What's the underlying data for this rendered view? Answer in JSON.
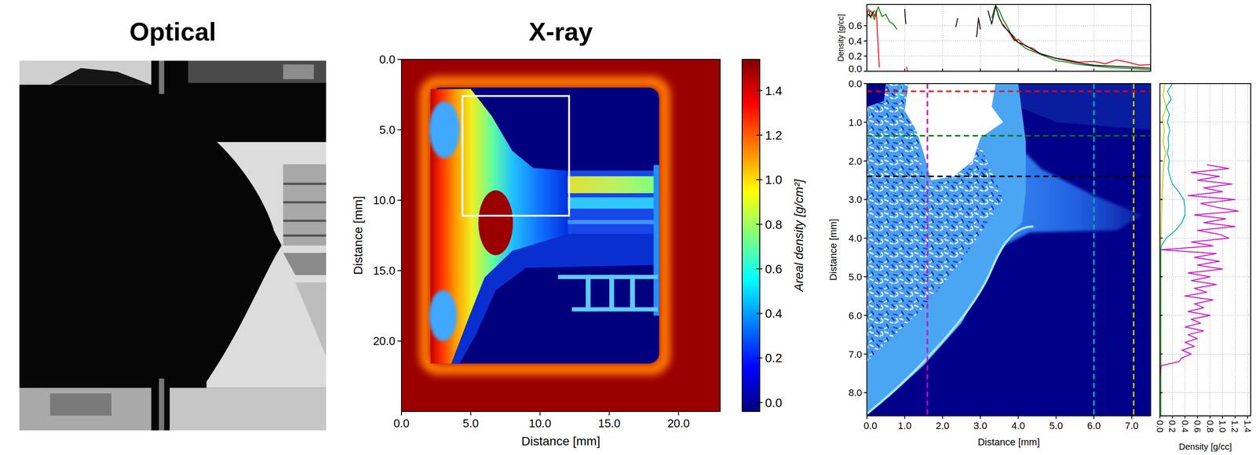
{
  "chart_data": [
    {
      "type": "image",
      "title": "Optical"
    },
    {
      "type": "heatmap",
      "title": "X-ray",
      "x_label": "Distance [mm]",
      "y_label": "Distance [mm]",
      "xlim": [
        0,
        23
      ],
      "ylim": [
        0,
        25
      ],
      "xticks": [
        {
          "value": 0,
          "label": "0.0"
        },
        {
          "value": 5,
          "label": "5.0"
        },
        {
          "value": 10,
          "label": "10.0"
        },
        {
          "value": 15,
          "label": "15.0"
        },
        {
          "value": 20,
          "label": "20.0"
        }
      ],
      "yticks": [
        {
          "value": 0,
          "label": "0.0"
        },
        {
          "value": 5,
          "label": "5.0"
        },
        {
          "value": 10,
          "label": "10.0"
        },
        {
          "value": 15,
          "label": "15.0"
        },
        {
          "value": 20,
          "label": "20.0"
        }
      ],
      "colorbar": {
        "label": "Areal density [g/cm²]",
        "range": [
          -0.04,
          1.54
        ],
        "ticks": [
          {
            "value": 0,
            "label": "0.0"
          },
          0.2,
          0.4,
          0.6,
          0.8,
          {
            "value": 1,
            "label": "1.0"
          },
          1.2,
          1.4
        ]
      },
      "zoom_box": {
        "x": [
          4.4,
          12.1
        ],
        "y": [
          2.6,
          11.1
        ]
      }
    },
    {
      "type": "heatmap",
      "x_label": "Distance [mm]",
      "y_label": "Distance [mm]",
      "xlim": [
        0,
        7.5
      ],
      "ylim": [
        0,
        8.6
      ],
      "xticks": [
        {
          "value": 0,
          "label": "0.0"
        },
        {
          "value": 1,
          "label": "1.0"
        },
        {
          "value": 2,
          "label": "2.0"
        },
        {
          "value": 3,
          "label": "3.0"
        },
        {
          "value": 4,
          "label": "4.0"
        },
        {
          "value": 5,
          "label": "5.0"
        },
        {
          "value": 6,
          "label": "6.0"
        },
        {
          "value": 7,
          "label": "7.0"
        }
      ],
      "yticks": [
        {
          "value": 0,
          "label": "0.0"
        },
        {
          "value": 1,
          "label": "1.0"
        },
        {
          "value": 2,
          "label": "2.0"
        },
        {
          "value": 3,
          "label": "3.0"
        },
        {
          "value": 4,
          "label": "4.0"
        },
        {
          "value": 5,
          "label": "5.0"
        },
        {
          "value": 6,
          "label": "6.0"
        },
        {
          "value": 7,
          "label": "7.0"
        },
        {
          "value": 8,
          "label": "8.0"
        }
      ],
      "lineouts": [
        {
          "direction": "horizontal",
          "position": 0.2,
          "color": "#ff0000"
        },
        {
          "direction": "horizontal",
          "position": 1.35,
          "color": "#008000"
        },
        {
          "direction": "horizontal",
          "position": 2.4,
          "color": "#000000"
        },
        {
          "direction": "vertical",
          "position": 1.6,
          "color": "#cc00cc"
        },
        {
          "direction": "vertical",
          "position": 6.0,
          "color": "#00b0b0"
        },
        {
          "direction": "vertical",
          "position": 7.05,
          "color": "#c8c800"
        }
      ]
    },
    {
      "type": "line",
      "y_label": "Density [g/cc]",
      "xlim": [
        0,
        7.5
      ],
      "ylim": [
        0,
        0.88
      ],
      "xticks": [
        1,
        2,
        3,
        4,
        5,
        6,
        7
      ],
      "yticks": [
        {
          "value": 0,
          "label": "0.0"
        },
        0.2,
        0.4,
        0.6
      ],
      "grid": true,
      "tick_labels": "y",
      "series": [
        {
          "color": "#ff0000",
          "x": [
            0,
            0.05,
            0.1,
            0.15,
            0.2,
            0.25,
            0.3,
            0.33,
            0.5,
            1.05,
            1.07,
            1.2,
            3.6,
            3.7,
            3.8,
            3.9,
            4.0,
            4.2,
            4.4,
            4.6,
            4.8,
            5.0,
            5.3,
            5.6,
            6.0,
            6.3,
            6.6,
            6.9,
            7.2,
            7.5
          ],
          "values": [
            0.75,
            0.82,
            0.7,
            0.78,
            0.72,
            0.8,
            0.3,
            0.05,
            null,
            0.06,
            0.0,
            null,
            0.62,
            0.55,
            0.48,
            0.4,
            0.42,
            0.33,
            0.3,
            0.22,
            0.2,
            0.17,
            0.15,
            0.12,
            0.13,
            0.1,
            0.15,
            0.12,
            0.08,
            0.09
          ]
        },
        {
          "color": "#008000",
          "x": [
            0,
            0.1,
            0.2,
            0.3,
            0.4,
            0.5,
            0.6,
            0.7,
            0.8,
            1.0,
            3.3,
            3.4,
            3.5,
            3.6,
            3.7,
            3.8,
            3.9,
            4.0,
            4.2,
            4.4,
            4.6,
            4.8,
            5.0,
            5.3,
            5.6,
            6.0,
            6.4,
            6.8,
            7.2,
            7.5
          ],
          "values": [
            0.7,
            0.8,
            0.68,
            0.85,
            0.72,
            0.75,
            0.65,
            0.62,
            0.55,
            null,
            0.7,
            0.87,
            0.8,
            0.68,
            0.6,
            0.5,
            0.45,
            0.38,
            0.3,
            0.26,
            0.22,
            0.18,
            0.14,
            0.12,
            0.09,
            0.07,
            0.05,
            0.04,
            0.03,
            0.02
          ]
        },
        {
          "color": "#000000",
          "x": [
            0.0,
            0.1,
            0.2,
            0.3,
            1.0,
            1.03,
            1.2,
            2.35,
            2.4,
            2.6,
            2.9,
            2.95,
            3.0,
            3.1,
            3.2,
            3.3,
            3.4,
            3.5,
            3.6,
            3.7,
            3.8,
            3.9,
            4.0,
            4.2,
            4.4,
            4.6,
            4.8,
            5.0,
            5.3,
            5.6,
            6.0,
            6.4,
            6.8,
            7.2,
            7.5
          ],
          "values": [
            0.76,
            0.72,
            0.8,
            null,
            0.82,
            0.62,
            null,
            0.58,
            0.7,
            null,
            0.45,
            0.7,
            0.55,
            null,
            0.8,
            0.62,
            0.86,
            0.7,
            0.6,
            0.55,
            0.5,
            0.42,
            0.38,
            0.34,
            0.28,
            0.23,
            0.2,
            0.17,
            0.14,
            0.11,
            0.08,
            0.07,
            0.06,
            0.05,
            0.04
          ]
        }
      ]
    },
    {
      "type": "line",
      "orientation": "horizontal",
      "x_label": "Density [g/cc]",
      "xlim": [
        0,
        1.45
      ],
      "ylim": [
        0,
        8.6
      ],
      "xticks": [
        {
          "value": 0,
          "label": "0.0"
        },
        0.2,
        0.4,
        0.6,
        0.8,
        {
          "value": 1,
          "label": "1.0"
        },
        1.2,
        1.4
      ],
      "yticks": [
        1,
        2,
        3,
        4,
        5,
        6,
        7,
        8
      ],
      "grid": true,
      "tick_labels": "x",
      "series": [
        {
          "color": "#c8c800",
          "x": [
            0,
            0.3,
            0.6,
            0.9,
            1.2,
            1.5,
            1.8,
            2.1,
            2.4,
            2.7,
            3.0,
            4.0,
            5.0,
            6.0,
            7.0,
            8.0,
            8.6
          ],
          "values": [
            0.08,
            0.05,
            0.1,
            0.04,
            0.07,
            0.05,
            0.09,
            0.06,
            0.05,
            0.04,
            0.03,
            0.02,
            0.02,
            0.02,
            0.02,
            0.02,
            0.02
          ]
        },
        {
          "color": "#00b0b0",
          "x": [
            0,
            0.2,
            0.4,
            0.6,
            0.8,
            1.0,
            1.2,
            1.4,
            1.6,
            1.8,
            2.0,
            2.2,
            2.4,
            2.6,
            2.8,
            3.0,
            3.2,
            3.4,
            3.6,
            3.8,
            4.0,
            4.2,
            4.4,
            5.0,
            6.0,
            7.0,
            8.0,
            8.6
          ],
          "values": [
            0.2,
            0.12,
            0.18,
            0.1,
            0.15,
            0.12,
            0.16,
            0.13,
            0.14,
            0.12,
            0.15,
            0.13,
            0.16,
            0.2,
            0.3,
            0.38,
            0.4,
            0.4,
            0.35,
            0.25,
            0.1,
            0.02,
            0.01,
            0.01,
            0.01,
            0.01,
            0.01,
            0.01
          ]
        },
        {
          "color": "#cc00cc",
          "x": [
            2.1,
            2.2,
            2.3,
            2.4,
            2.5,
            2.6,
            2.7,
            2.8,
            2.9,
            3.0,
            3.1,
            3.2,
            3.3,
            3.4,
            3.5,
            3.6,
            3.7,
            3.8,
            3.9,
            4.0,
            4.1,
            4.2,
            4.3,
            4.4,
            4.5,
            4.6,
            4.7,
            4.8,
            4.9,
            5.0,
            5.1,
            5.2,
            5.3,
            5.4,
            5.5,
            5.6,
            5.7,
            5.8,
            5.9,
            6.0,
            6.1,
            6.2,
            6.3,
            6.4,
            6.5,
            6.6,
            6.7,
            6.8,
            6.9,
            7.0,
            7.1,
            7.2,
            7.3,
            7.6,
            8.6
          ],
          "values": [
            0.75,
            1.1,
            0.5,
            0.95,
            0.6,
            1.15,
            0.7,
            1.0,
            0.45,
            1.2,
            0.65,
            0.9,
            1.25,
            0.55,
            1.05,
            0.7,
            1.2,
            0.6,
            0.95,
            1.1,
            0.5,
            0.85,
            0.02,
            0.9,
            0.55,
            0.95,
            0.6,
            1.0,
            0.45,
            0.8,
            0.5,
            0.9,
            0.55,
            0.75,
            0.4,
            0.85,
            0.55,
            0.7,
            0.45,
            0.8,
            0.5,
            0.65,
            0.4,
            0.7,
            0.45,
            0.6,
            0.4,
            0.55,
            0.35,
            0.5,
            0.35,
            0.3,
            0.02,
            0.0,
            0.0
          ]
        }
      ]
    }
  ]
}
